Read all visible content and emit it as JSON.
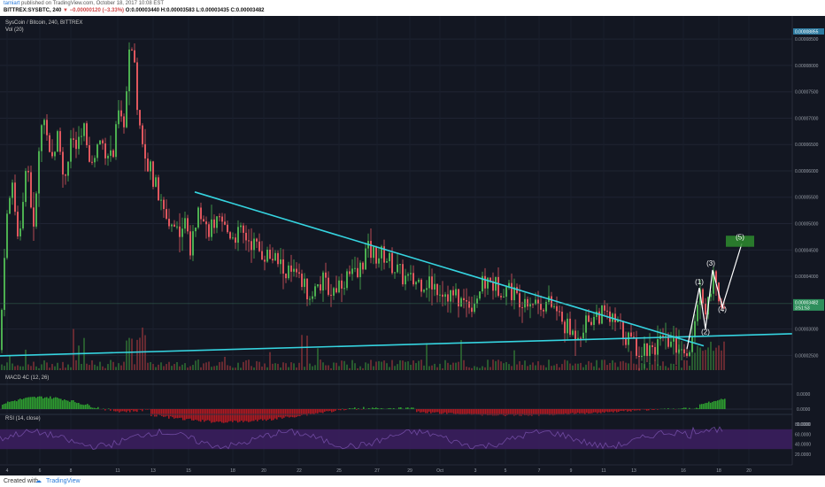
{
  "header": {
    "user": "tamiart",
    "published": " published on TradingView.com, October 18, 2017 10:08 EST",
    "symbol": "BITTREX:SYSBTC, 240",
    "arrow": "▼",
    "change": "−0.00000120 (−3.33%)",
    "ohlc": "O:0.00003440 H:0.00003583 L:0.00003435 C:0.00003482"
  },
  "footer": {
    "created": "Created with",
    "brand": "TradingView"
  },
  "colors": {
    "background": "#131722",
    "up": "#4caf50",
    "down": "#e0575e",
    "trendline": "#35d4e0",
    "macd_pos": "#2e9e30",
    "macd_neg": "#b01a22",
    "rsi_fill": "#3b1e5e",
    "rsi_line": "#6f4aa0",
    "target_box": "#2e8b2e"
  },
  "chart_data": [
    {
      "type": "candlestick",
      "title": "SysCoin / Bitcoin, 240, BITTREX",
      "volume_label": "Vol (20)",
      "x_ticks": [
        "4",
        "6",
        "8",
        "11",
        "13",
        "15",
        "18",
        "20",
        "22",
        "25",
        "27",
        "29",
        "Oct",
        "3",
        "5",
        "7",
        "9",
        "11",
        "13",
        "16",
        "18",
        "20"
      ],
      "y_ticks": [
        "0.00008500",
        "0.00008000",
        "0.00007500",
        "0.00007000",
        "0.00006500",
        "0.00006000",
        "0.00005500",
        "0.00005000",
        "0.00004500",
        "0.00004000",
        "0.00003000",
        "0.00002500"
      ],
      "ylim": [
        2.22e-05,
        8.57e-05
      ],
      "last_price": "0.00003482",
      "last_price_sub": "3:51:53",
      "top_label": "0.00008855",
      "anchors": [
        [
          0,
          2.6e-05
        ],
        [
          6,
          4.9e-05
        ],
        [
          14,
          5.8e-05
        ],
        [
          22,
          4.5e-05
        ],
        [
          30,
          6.4e-05
        ],
        [
          38,
          4.8e-05
        ],
        [
          46,
          6.8e-05
        ],
        [
          52,
          7e-05
        ],
        [
          58,
          6.2e-05
        ],
        [
          66,
          6.7e-05
        ],
        [
          72,
          5.8e-05
        ],
        [
          80,
          6.6e-05
        ],
        [
          88,
          6.4e-05
        ],
        [
          96,
          6.8e-05
        ],
        [
          104,
          6.1e-05
        ],
        [
          112,
          6.6e-05
        ],
        [
          120,
          6.4e-05
        ],
        [
          128,
          6.3e-05
        ],
        [
          134,
          7.1e-05
        ],
        [
          140,
          6.8e-05
        ],
        [
          146,
          8.2e-05
        ],
        [
          150,
          8.4e-05
        ],
        [
          156,
          7e-05
        ],
        [
          162,
          6.6e-05
        ],
        [
          168,
          6.1e-05
        ],
        [
          176,
          5.7e-05
        ],
        [
          184,
          5.2e-05
        ],
        [
          194,
          5e-05
        ],
        [
          202,
          4.9e-05
        ],
        [
          210,
          5e-05
        ],
        [
          216,
          4.4e-05
        ],
        [
          224,
          5.5e-05
        ],
        [
          232,
          4.9e-05
        ],
        [
          242,
          5e-05
        ],
        [
          252,
          4.9e-05
        ],
        [
          262,
          4.8e-05
        ],
        [
          272,
          4.8e-05
        ],
        [
          282,
          4.7e-05
        ],
        [
          292,
          4.5e-05
        ],
        [
          302,
          4.4e-05
        ],
        [
          312,
          4.3e-05
        ],
        [
          322,
          4.1e-05
        ],
        [
          332,
          4e-05
        ],
        [
          342,
          3.8e-05
        ],
        [
          354,
          3.7e-05
        ],
        [
          364,
          3.9e-05
        ],
        [
          374,
          3.7e-05
        ],
        [
          384,
          3.9e-05
        ],
        [
          394,
          4e-05
        ],
        [
          404,
          4e-05
        ],
        [
          414,
          4.5e-05
        ],
        [
          424,
          4.4e-05
        ],
        [
          434,
          4.4e-05
        ],
        [
          444,
          4.2e-05
        ],
        [
          454,
          4e-05
        ],
        [
          464,
          3.9e-05
        ],
        [
          474,
          3.9e-05
        ],
        [
          484,
          3.9e-05
        ],
        [
          494,
          3.8e-05
        ],
        [
          504,
          3.7e-05
        ],
        [
          514,
          3.6e-05
        ],
        [
          524,
          3.5e-05
        ],
        [
          534,
          3.5e-05
        ],
        [
          544,
          3.8e-05
        ],
        [
          552,
          3.9e-05
        ],
        [
          562,
          3.8e-05
        ],
        [
          574,
          3.8e-05
        ],
        [
          584,
          3.6e-05
        ],
        [
          596,
          3.6e-05
        ],
        [
          606,
          3.5e-05
        ],
        [
          616,
          3.5e-05
        ],
        [
          626,
          3.4e-05
        ],
        [
          636,
          3.1e-05
        ],
        [
          646,
          2.9e-05
        ],
        [
          656,
          3e-05
        ],
        [
          666,
          3.2e-05
        ],
        [
          676,
          3.3e-05
        ],
        [
          686,
          3.2e-05
        ],
        [
          696,
          3.1e-05
        ],
        [
          706,
          2.9e-05
        ],
        [
          716,
          2.7e-05
        ],
        [
          726,
          2.6e-05
        ],
        [
          736,
          2.7e-05
        ],
        [
          746,
          2.7e-05
        ],
        [
          756,
          2.7e-05
        ],
        [
          766,
          2.7e-05
        ],
        [
          774,
          2.6e-05
        ],
        [
          782,
          2.8e-05
        ],
        [
          790,
          3.6e-05
        ],
        [
          798,
          3.4e-05
        ],
        [
          806,
          3.9e-05
        ],
        [
          812,
          3.6e-05
        ],
        [
          818,
          3.5e-05
        ]
      ],
      "trendline_down": {
        "from": [
          220,
          5.6e-05
        ],
        "to": [
          795,
          2.68e-05
        ]
      },
      "trendline_flat": {
        "from": [
          0,
          2.49e-05
        ],
        "to": [
          895,
          2.91e-05
        ]
      },
      "wave_path": [
        [
          776,
          2.62e-05
        ],
        [
          790,
          3.78e-05
        ],
        [
          797,
          3e-05
        ],
        [
          805,
          4.12e-05
        ],
        [
          816,
          3.42e-05
        ],
        [
          838,
          4.62e-05
        ]
      ],
      "wave_labels": [
        {
          "text": "(1)",
          "x": 790,
          "y": 3.85e-05
        },
        {
          "text": "(2)",
          "x": 797,
          "y": 2.9e-05
        },
        {
          "text": "(3)",
          "x": 803,
          "y": 4.2e-05
        },
        {
          "text": "(4)",
          "x": 816,
          "y": 3.33e-05
        },
        {
          "text": "(5)",
          "x": 836,
          "y": 4.7e-05
        }
      ],
      "target_box": {
        "x1": 820,
        "x2": 852,
        "y_high": 4.77e-05,
        "y_low": 4.56e-05
      }
    },
    {
      "type": "bar",
      "title": "MACD 4C (12, 26)",
      "y_ticks": [
        "0.0000",
        "0.0000",
        "0.0000"
      ]
    },
    {
      "type": "area",
      "title": "RSI (14, close)",
      "y_ticks": [
        "80.0000",
        "60.0000",
        "40.0000",
        "20.0000"
      ],
      "ylim": [
        0,
        100
      ]
    }
  ]
}
